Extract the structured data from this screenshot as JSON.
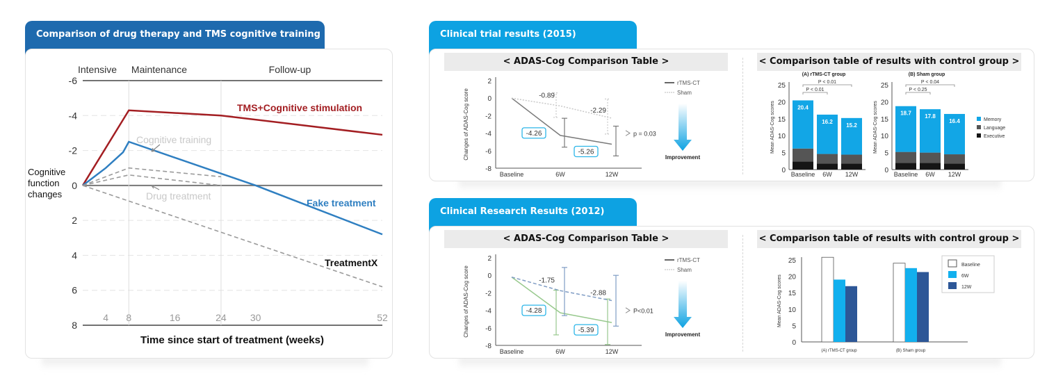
{
  "left_panel": {
    "tab_title": "Comparison of drug therapy and TMS cognitive training",
    "tab_color": "#1e6aae"
  },
  "right_top": {
    "tab_title": "Clinical trial results (2015)",
    "tab_color": "#0da2e2",
    "left_subhead": "< ADAS-Cog Comparison Table >",
    "right_subhead": "< Comparison table of results with control group >"
  },
  "right_bottom": {
    "tab_title": "Clinical Research Results (2012)",
    "tab_color": "#0da2e2",
    "left_subhead": "< ADAS-Cog Comparison Table >",
    "right_subhead": "< Comparison table of results with control group >"
  },
  "chart_data": [
    {
      "id": "main",
      "type": "line",
      "title": "Comparison of drug therapy and TMS cognitive training",
      "xlabel": "Time since start of treatment (weeks)",
      "ylabel": "Cognitive function changes",
      "phases": [
        "Intensive",
        "Maintenance",
        "Follow-up"
      ],
      "x_ticks": [
        4,
        8,
        16,
        24,
        30,
        52
      ],
      "y_ticks": [
        -6,
        -4,
        -2,
        0,
        2,
        4,
        6,
        8
      ],
      "ylim": [
        -6,
        8
      ],
      "xlim": [
        0,
        52
      ],
      "y_inverted": true,
      "grid": true,
      "series": [
        {
          "name": "TMS+Cognitive stimulation",
          "color": "#a31e22",
          "style": "solid",
          "x": [
            0,
            8,
            24,
            52
          ],
          "y": [
            0,
            -4.3,
            -4.0,
            -2.9
          ]
        },
        {
          "name": "Fake treatment",
          "color": "#2f7fc1",
          "style": "solid",
          "x": [
            0,
            4,
            7,
            8,
            30,
            52
          ],
          "y": [
            0,
            -1.0,
            -1.9,
            -2.5,
            0,
            2.8
          ]
        },
        {
          "name": "Cognitive training",
          "color": "#9a9a9a",
          "style": "dashed",
          "x": [
            0,
            8,
            24
          ],
          "y": [
            0,
            -1.0,
            -0.5
          ]
        },
        {
          "name": "Drug treatment",
          "color": "#9a9a9a",
          "style": "dashed",
          "x": [
            0,
            8,
            24
          ],
          "y": [
            0,
            -0.6,
            0
          ]
        },
        {
          "name": "TreatmentX",
          "color": "#9a9a9a",
          "style": "dashed",
          "x": [
            0,
            52
          ],
          "y": [
            0,
            5.8
          ]
        }
      ],
      "annotations": [
        "TMS+Cognitive stimulation",
        "Cognitive training",
        "Drug treatment",
        "Fake treatment",
        "TreatmentX"
      ]
    },
    {
      "id": "adas2015",
      "type": "line",
      "ylabel": "Changes of ADAS-Cog score",
      "categories": [
        "Baseline",
        "6W",
        "12W"
      ],
      "ylim": [
        -8,
        2
      ],
      "y_ticks": [
        2,
        0,
        -2,
        -4,
        -6,
        -8
      ],
      "series": [
        {
          "name": "rTMS-CT",
          "color": "#7a7a7a",
          "style": "solid",
          "values": [
            0,
            -4.26,
            -5.26
          ],
          "err_low": [
            null,
            -5.6,
            -6.6
          ],
          "err_high": [
            null,
            -2.3,
            -3.2
          ]
        },
        {
          "name": "Sham",
          "color": "#c8c8c8",
          "style": "dotted",
          "values": [
            0,
            -0.89,
            -2.29
          ],
          "err_low": [
            null,
            -2.2,
            -4.1
          ],
          "err_high": [
            null,
            0.6,
            -0.1
          ]
        }
      ],
      "labels": [
        "-0.89",
        "-2.29",
        "-4.26",
        "-5.26"
      ],
      "p_value": "p = 0.03",
      "legend": [
        "rTMS-CT",
        "Sham"
      ],
      "arrow_label": "Improvement"
    },
    {
      "id": "ctrl2015",
      "type": "bar",
      "stacked": true,
      "ylabel": "Mean ADAS-Cog scores",
      "ylim": [
        0,
        25
      ],
      "y_ticks": [
        0,
        5,
        10,
        15,
        20,
        25
      ],
      "legend": [
        {
          "name": "Memory",
          "color": "#12a6e6"
        },
        {
          "name": "Language",
          "color": "#555555"
        },
        {
          "name": "Executive",
          "color": "#151515"
        }
      ],
      "groups": [
        {
          "title": "(A) rTMS-CT group",
          "categories": [
            "Baseline",
            "6W",
            "12W"
          ],
          "totals": [
            20.4,
            16.2,
            15.2
          ],
          "executive": [
            2.4,
            1.8,
            1.8
          ],
          "language": [
            3.8,
            2.8,
            2.6
          ],
          "memory": [
            14.2,
            11.6,
            10.8
          ],
          "sig": [
            {
              "label": "P < 0.01",
              "from": 0,
              "to": 1
            },
            {
              "label": "P < 0.01",
              "from": 0,
              "to": 2
            }
          ]
        },
        {
          "title": "(B) Sham group",
          "categories": [
            "Baseline",
            "6W",
            "12W"
          ],
          "totals": [
            18.7,
            17.8,
            16.4
          ],
          "executive": [
            2.0,
            2.0,
            1.8
          ],
          "language": [
            3.2,
            3.0,
            2.7
          ],
          "memory": [
            13.5,
            12.8,
            11.9
          ],
          "sig": [
            {
              "label": "P < 0.25",
              "from": 0,
              "to": 1
            },
            {
              "label": "P < 0.04",
              "from": 0,
              "to": 2
            }
          ]
        }
      ]
    },
    {
      "id": "adas2012",
      "type": "line",
      "ylabel": "Changes of ADAS-Cog score",
      "categories": [
        "Baseline",
        "6W",
        "12W"
      ],
      "ylim": [
        -8,
        2
      ],
      "y_ticks": [
        2,
        0,
        -2,
        -4,
        -6,
        -8
      ],
      "series": [
        {
          "name": "rTMS-CT",
          "color": "#98c98e",
          "style": "solid",
          "values": [
            -0.2,
            -4.28,
            -5.39
          ],
          "err_low": [
            null,
            -6.8,
            -7.9
          ],
          "err_high": [
            null,
            -1.7,
            -2.7
          ]
        },
        {
          "name": "Sham",
          "color": "#7f9cc4",
          "style": "dashed",
          "values": [
            -0.2,
            -1.75,
            -2.88
          ],
          "err_low": [
            null,
            -4.6,
            -5.8
          ],
          "err_high": [
            null,
            0.9,
            0
          ]
        }
      ],
      "labels": [
        "-1.75",
        "-2.88",
        "-4.28",
        "-5.39"
      ],
      "p_value": "P<0.01",
      "legend": [
        "rTMS-CT",
        "Sham"
      ],
      "arrow_label": "Improvement"
    },
    {
      "id": "ctrl2012",
      "type": "bar",
      "ylabel": "Mean ADAS-Cog scores",
      "ylim": [
        0,
        25
      ],
      "y_ticks": [
        0,
        5,
        10,
        15,
        20,
        25
      ],
      "categories": [
        "(A) rTMS-CT group",
        "(B) Sham group"
      ],
      "series": [
        {
          "name": "Baseline",
          "color": "#ffffff",
          "values": [
            25.8,
            24.0
          ]
        },
        {
          "name": "6W",
          "color": "#12b0ee",
          "values": [
            19.0,
            22.5
          ]
        },
        {
          "name": "12W",
          "color": "#2d5797",
          "values": [
            17.0,
            21.3
          ]
        }
      ]
    }
  ]
}
